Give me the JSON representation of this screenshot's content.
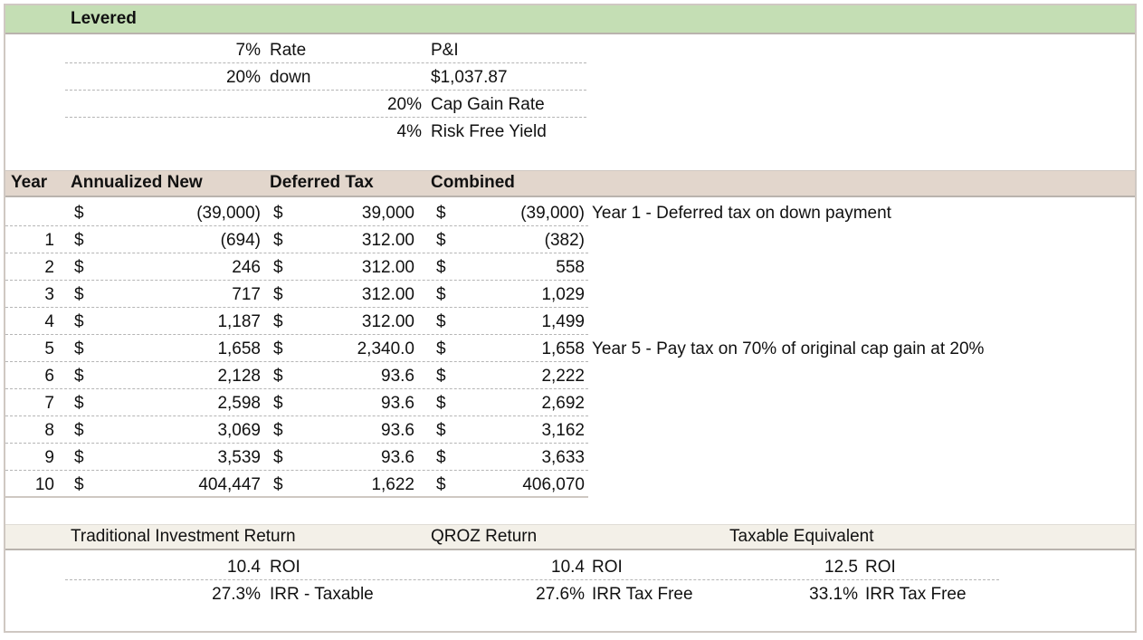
{
  "levered": {
    "title": "Levered",
    "rate_pct": "7%",
    "rate_label": "Rate",
    "down_pct": "20%",
    "down_label": "down",
    "pi_label": "P&I",
    "pi_value": "$1,037.87",
    "capgain_pct": "20%",
    "capgain_label": "Cap Gain Rate",
    "riskfree_pct": "4%",
    "riskfree_label": "Risk Free Yield"
  },
  "table": {
    "headers": {
      "year": "Year",
      "annualized": "Annualized New",
      "deferred": "Deferred Tax",
      "combined": "Combined"
    },
    "currency": "$",
    "rows": [
      {
        "year": "",
        "annualized": "(39,000)",
        "deferred": "39,000",
        "combined": "(39,000)",
        "note": "Year 1 - Deferred tax on down payment"
      },
      {
        "year": "1",
        "annualized": "(694)",
        "deferred": "312.00",
        "combined": "(382)",
        "note": ""
      },
      {
        "year": "2",
        "annualized": "246",
        "deferred": "312.00",
        "combined": "558",
        "note": ""
      },
      {
        "year": "3",
        "annualized": "717",
        "deferred": "312.00",
        "combined": "1,029",
        "note": ""
      },
      {
        "year": "4",
        "annualized": "1,187",
        "deferred": "312.00",
        "combined": "1,499",
        "note": ""
      },
      {
        "year": "5",
        "annualized": "1,658",
        "deferred": "2,340.0",
        "combined": "1,658",
        "note": "Year 5 - Pay tax on 70% of original cap gain at 20%"
      },
      {
        "year": "6",
        "annualized": "2,128",
        "deferred": "93.6",
        "combined": "2,222",
        "note": ""
      },
      {
        "year": "7",
        "annualized": "2,598",
        "deferred": "93.6",
        "combined": "2,692",
        "note": ""
      },
      {
        "year": "8",
        "annualized": "3,069",
        "deferred": "93.6",
        "combined": "3,162",
        "note": ""
      },
      {
        "year": "9",
        "annualized": "3,539",
        "deferred": "93.6",
        "combined": "3,633",
        "note": ""
      },
      {
        "year": "10",
        "annualized": "404,447",
        "deferred": "1,622",
        "combined": "406,070",
        "note": ""
      }
    ]
  },
  "returns": {
    "traditional": {
      "title": "Traditional Investment Return",
      "roi_value": "10.4",
      "roi_label": "ROI",
      "irr_value": "27.3%",
      "irr_label": "IRR - Taxable"
    },
    "qroz": {
      "title": "QROZ Return",
      "roi_value": "10.4",
      "roi_label": "ROI",
      "irr_value": "27.6%",
      "irr_label": "IRR Tax Free"
    },
    "taxable_equiv": {
      "title": "Taxable Equivalent",
      "roi_value": "12.5",
      "roi_label": "ROI",
      "irr_value": "33.1%",
      "irr_label": "IRR Tax Free"
    }
  },
  "colors": {
    "levered_band": "#c4deb4",
    "header_band": "#e2d6cc",
    "returns_band": "#f3f0e8"
  }
}
